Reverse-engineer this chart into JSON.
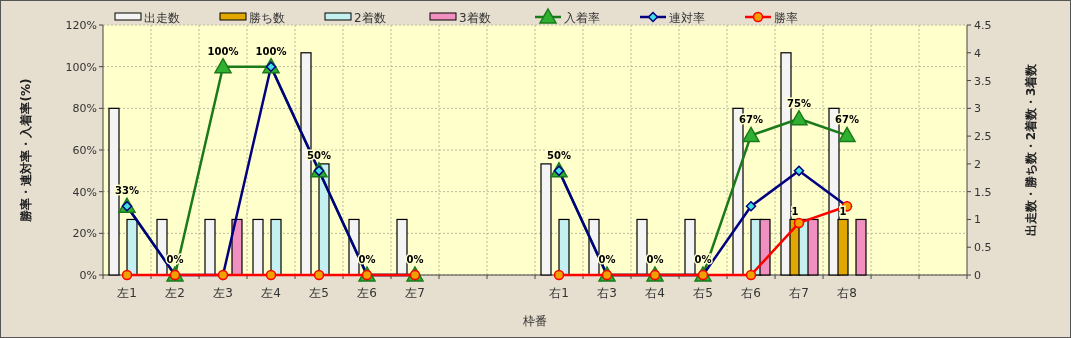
{
  "chart_data": {
    "type": "bar",
    "categories": [
      "左1",
      "左2",
      "左3",
      "左4",
      "左5",
      "左6",
      "左7",
      null,
      null,
      "右1",
      "右3",
      "右4",
      "右5",
      "右6",
      "右7",
      "右8",
      null,
      null
    ],
    "series": [
      {
        "name": "出走数",
        "axis": "y2",
        "color": "#f4f4f4",
        "values": [
          3,
          1,
          1,
          1,
          4,
          1,
          1,
          null,
          null,
          2,
          1,
          1,
          1,
          3,
          4,
          3,
          null,
          null
        ]
      },
      {
        "name": "勝ち数",
        "axis": "y2",
        "color": "#e0a800",
        "values": [
          0,
          0,
          0,
          0,
          0,
          0,
          0,
          null,
          null,
          0,
          0,
          0,
          0,
          0,
          1,
          1,
          null,
          null
        ],
        "value_labels": [
          null,
          null,
          null,
          null,
          null,
          null,
          null,
          null,
          null,
          null,
          null,
          null,
          null,
          null,
          "1",
          "1",
          null,
          null
        ]
      },
      {
        "name": "2着数",
        "axis": "y2",
        "color": "#c4f0f0",
        "values": [
          1,
          0,
          0,
          1,
          2,
          0,
          0,
          null,
          null,
          1,
          0,
          0,
          0,
          1,
          1,
          0,
          null,
          null
        ]
      },
      {
        "name": "3着数",
        "axis": "y2",
        "color": "#f090c0",
        "values": [
          0,
          0,
          1,
          0,
          0,
          0,
          0,
          null,
          null,
          0,
          0,
          0,
          0,
          1,
          1,
          1,
          null,
          null
        ]
      },
      {
        "name": "入着率",
        "type": "line",
        "color": "#1a7a1a",
        "marker": "triangle",
        "values": [
          33,
          0,
          100,
          100,
          50,
          0,
          0,
          null,
          null,
          50,
          0,
          0,
          0,
          67,
          75,
          67,
          null,
          null
        ],
        "value_labels": [
          "33%",
          "0%",
          "100%",
          "100%",
          "50%",
          "0%",
          "0%",
          null,
          null,
          "50%",
          "0%",
          "0%",
          "0%",
          "67%",
          "75%",
          "67%",
          null,
          null
        ]
      },
      {
        "name": "連対率",
        "type": "line",
        "color": "#000080",
        "marker": "diamond",
        "values": [
          33,
          0,
          0,
          100,
          50,
          0,
          0,
          null,
          null,
          50,
          0,
          0,
          0,
          33,
          50,
          33,
          null,
          null
        ]
      },
      {
        "name": "勝率",
        "type": "line",
        "color": "#ff0000",
        "marker": "circle",
        "values": [
          0,
          0,
          0,
          0,
          0,
          0,
          0,
          null,
          null,
          0,
          0,
          0,
          0,
          0,
          25,
          33,
          null,
          null
        ]
      }
    ],
    "xlabel": "枠番",
    "ylabel": "勝率・連対率・入着率(%)",
    "y2label": "出走数・勝ち数・2着数・3着数",
    "ylim": [
      0,
      120
    ],
    "yticks": [
      {
        "value": 0,
        "label": "0%"
      },
      {
        "value": 20,
        "label": "20%"
      },
      {
        "value": 40,
        "label": "40%"
      },
      {
        "value": 60,
        "label": "60%"
      },
      {
        "value": 80,
        "label": "80%"
      },
      {
        "value": 100,
        "label": "100%"
      },
      {
        "value": 120,
        "label": "120%"
      }
    ],
    "y2lim": [
      0,
      4.5
    ],
    "y2ticks": [
      0,
      0.5,
      1,
      1.5,
      2,
      2.5,
      3,
      3.5,
      4,
      4.5
    ],
    "grid": true,
    "legend": "top"
  }
}
